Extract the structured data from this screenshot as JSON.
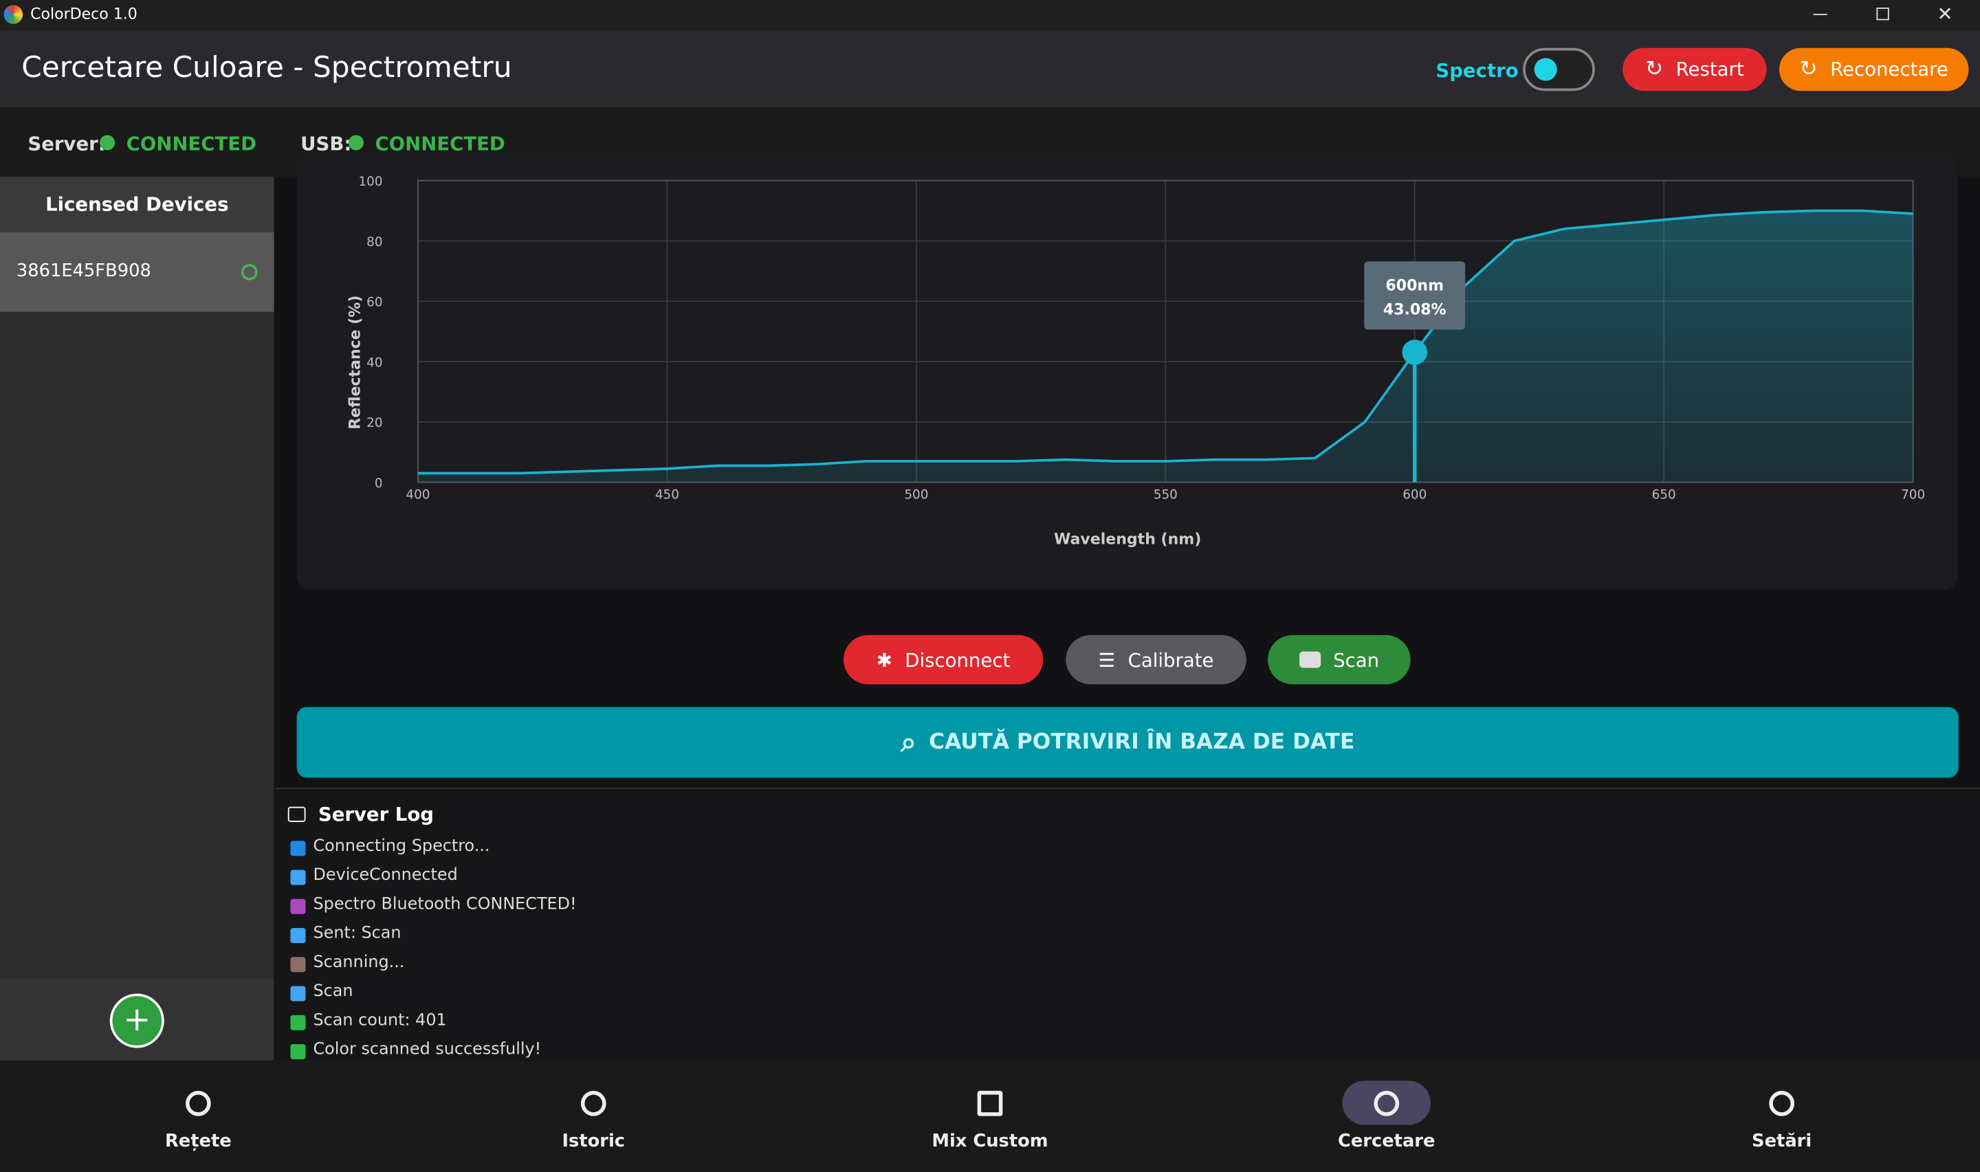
{
  "window": {
    "title": "ColorDeco 1.0"
  },
  "header": {
    "title": "Cercetare Culoare - Spectrometru",
    "toggle_label": "Spectro",
    "buttons": [
      "Restart",
      "Reconectare"
    ]
  },
  "status": [
    {
      "label": "Server:",
      "value": "CONNECTED"
    },
    {
      "label": "USB:",
      "value": "CONNECTED"
    }
  ],
  "sidebar": {
    "title": "Licensed Devices",
    "devices": [
      "3861E45FB908"
    ]
  },
  "chart_data": {
    "type": "area",
    "x_label": "Wavelength (nm)",
    "y_label": "Reflectance (%)",
    "x": [
      400,
      410,
      420,
      430,
      440,
      450,
      460,
      470,
      480,
      490,
      500,
      510,
      520,
      530,
      540,
      550,
      560,
      570,
      580,
      590,
      600,
      610,
      620,
      630,
      640,
      650,
      660,
      670,
      680,
      690,
      700
    ],
    "values": [
      3,
      3,
      3,
      3.5,
      4,
      4.5,
      5.5,
      5.5,
      6,
      7,
      7,
      7,
      7,
      7.5,
      7,
      7,
      7.5,
      7.5,
      8,
      20,
      43.08,
      65,
      80,
      84,
      85.5,
      87,
      88.5,
      89.5,
      90,
      90,
      89
    ],
    "color": "#1ab4d0",
    "xlim": [
      400,
      700
    ],
    "xticks": [
      400,
      450,
      500,
      550,
      600,
      650,
      700
    ],
    "ylim": [
      0,
      100
    ],
    "yticks": [
      0,
      20,
      40,
      60,
      80,
      100
    ],
    "grid": true,
    "tooltip": {
      "x": 600,
      "labels": [
        "600nm",
        "43.08%"
      ]
    }
  },
  "actions": [
    "Disconnect",
    "Calibrate",
    "Scan"
  ],
  "search_button": "CAUTĂ POTRIVIRI ÎN BAZA DE DATE",
  "server_log": {
    "title": "Server Log",
    "entries": [
      "Connecting Spectro...",
      "DeviceConnected",
      "Spectro Bluetooth CONNECTED!",
      "Sent: Scan",
      "Scanning...",
      "Scan",
      "Scan count: 401",
      "Color scanned successfully!"
    ]
  },
  "nav": [
    "Rețete",
    "Istoric",
    "Mix Custom",
    "Cercetare",
    "Setări"
  ]
}
